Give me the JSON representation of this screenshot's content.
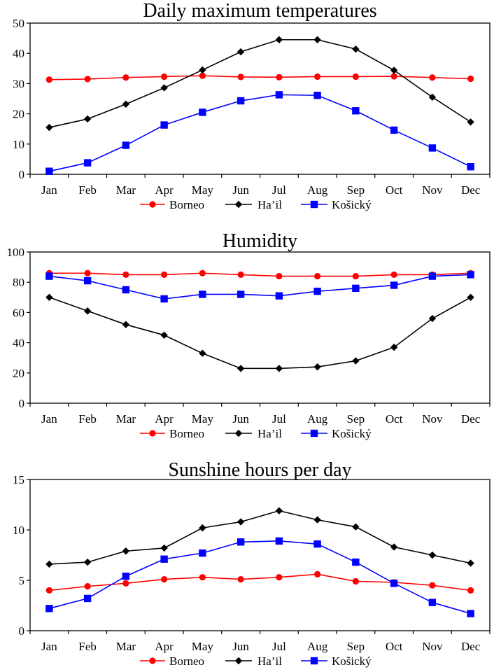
{
  "chart_data": [
    {
      "type": "line",
      "title": "Daily maximum temperatures",
      "xlabel": "",
      "ylabel": "",
      "categories": [
        "Jan",
        "Feb",
        "Mar",
        "Apr",
        "May",
        "Jun",
        "Jul",
        "Aug",
        "Sep",
        "Oct",
        "Nov",
        "Dec"
      ],
      "ylim": [
        0,
        50
      ],
      "yticks": [
        0,
        10,
        20,
        30,
        40,
        50
      ],
      "grid": false,
      "legend_position": "bottom",
      "series": [
        {
          "name": "Borneo",
          "color": "#ff0000",
          "marker": "circle",
          "values": [
            31.3,
            31.5,
            32.0,
            32.3,
            32.6,
            32.2,
            32.1,
            32.3,
            32.3,
            32.4,
            32.0,
            31.6
          ]
        },
        {
          "name": "Ha’il",
          "color": "#000000",
          "marker": "diamond",
          "values": [
            15.5,
            18.3,
            23.2,
            28.6,
            34.5,
            40.5,
            44.5,
            44.5,
            41.4,
            34.4,
            25.5,
            17.3
          ]
        },
        {
          "name": "Košický",
          "color": "#0000ff",
          "marker": "square",
          "values": [
            1.0,
            3.8,
            9.6,
            16.3,
            20.5,
            24.3,
            26.3,
            26.1,
            21.0,
            14.6,
            8.7,
            2.5
          ]
        }
      ]
    },
    {
      "type": "line",
      "title": "Humidity",
      "xlabel": "",
      "ylabel": "",
      "categories": [
        "Jan",
        "Feb",
        "Mar",
        "Apr",
        "May",
        "Jun",
        "Jul",
        "Aug",
        "Sep",
        "Oct",
        "Nov",
        "Dec"
      ],
      "ylim": [
        0,
        100
      ],
      "yticks": [
        0,
        20,
        40,
        60,
        80,
        100
      ],
      "grid": false,
      "legend_position": "bottom",
      "series": [
        {
          "name": "Borneo",
          "color": "#ff0000",
          "marker": "circle",
          "values": [
            86,
            86,
            85,
            85,
            86,
            85,
            84,
            84,
            84,
            85,
            85,
            86
          ]
        },
        {
          "name": "Ha’il",
          "color": "#000000",
          "marker": "diamond",
          "values": [
            70,
            61,
            52,
            45,
            33,
            23,
            23,
            24,
            28,
            37,
            56,
            70
          ]
        },
        {
          "name": "Košický",
          "color": "#0000ff",
          "marker": "square",
          "values": [
            84,
            81,
            75,
            69,
            72,
            72,
            71,
            74,
            76,
            78,
            84,
            85
          ]
        }
      ]
    },
    {
      "type": "line",
      "title": "Sunshine hours per day",
      "xlabel": "",
      "ylabel": "",
      "categories": [
        "Jan",
        "Feb",
        "Mar",
        "Apr",
        "May",
        "Jun",
        "Jul",
        "Aug",
        "Sep",
        "Oct",
        "Nov",
        "Dec"
      ],
      "ylim": [
        0,
        15
      ],
      "yticks": [
        0,
        5,
        10,
        15
      ],
      "grid": false,
      "legend_position": "bottom",
      "series": [
        {
          "name": "Borneo",
          "color": "#ff0000",
          "marker": "circle",
          "values": [
            4.0,
            4.4,
            4.7,
            5.1,
            5.3,
            5.1,
            5.3,
            5.6,
            4.9,
            4.8,
            4.5,
            4.0
          ]
        },
        {
          "name": "Ha’il",
          "color": "#000000",
          "marker": "diamond",
          "values": [
            6.6,
            6.8,
            7.9,
            8.2,
            10.2,
            10.8,
            11.9,
            11.0,
            10.3,
            8.3,
            7.5,
            6.7
          ]
        },
        {
          "name": "Košický",
          "color": "#0000ff",
          "marker": "square",
          "values": [
            2.2,
            3.2,
            5.4,
            7.1,
            7.7,
            8.8,
            8.9,
            8.6,
            6.8,
            4.7,
            2.8,
            1.7
          ]
        }
      ]
    }
  ]
}
